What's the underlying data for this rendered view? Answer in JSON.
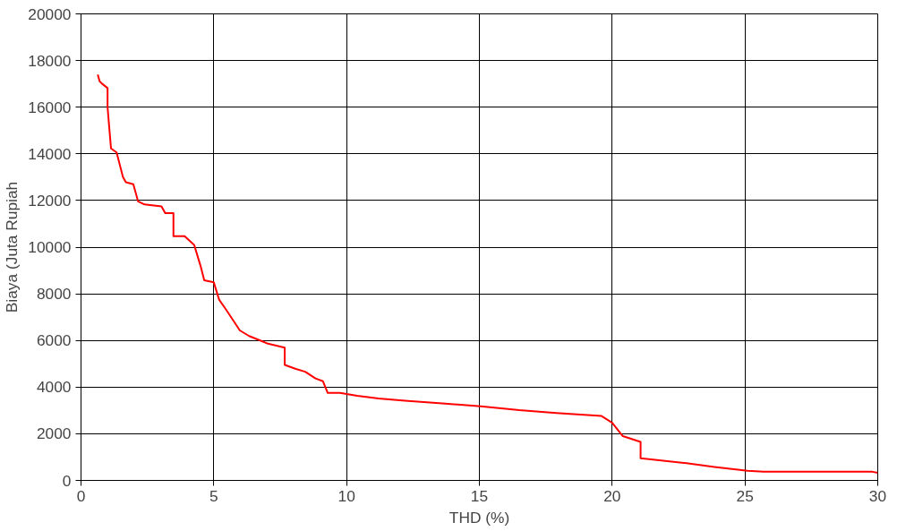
{
  "chart_data": {
    "type": "line",
    "xlabel": "THD (%)",
    "ylabel": "Biaya (Juta Rupiah",
    "xlim": [
      0,
      30
    ],
    "ylim": [
      0,
      20000
    ],
    "xticks": [
      0,
      5,
      10,
      15,
      20,
      25,
      30
    ],
    "yticks": [
      0,
      2000,
      4000,
      6000,
      8000,
      10000,
      12000,
      14000,
      16000,
      18000,
      20000
    ],
    "grid": true,
    "marker": "none",
    "line_style": "solid",
    "series": [
      {
        "color": "#ff0000",
        "x": [
          0.63,
          0.7,
          0.81,
          1.0,
          1.0,
          1.05,
          1.13,
          1.34,
          1.58,
          1.69,
          1.97,
          2.15,
          2.39,
          3.03,
          3.17,
          3.48,
          3.48,
          3.9,
          4.26,
          4.5,
          4.64,
          5.0,
          5.2,
          5.45,
          5.98,
          6.33,
          6.79,
          7.04,
          7.67,
          7.67,
          8.09,
          8.44,
          8.83,
          9.11,
          9.29,
          9.75,
          10.4,
          11.2,
          12.2,
          13.6,
          15.05,
          16.5,
          17.9,
          19.6,
          20.0,
          20.4,
          21.07,
          21.07,
          22.8,
          23.85,
          25.1,
          25.7,
          27.7,
          29.8,
          30
        ],
        "values": [
          17400,
          17110,
          16990,
          16820,
          16000,
          15300,
          14230,
          14060,
          13000,
          12780,
          12700,
          11960,
          11830,
          11750,
          11460,
          11460,
          10470,
          10470,
          10100,
          9200,
          8580,
          8490,
          7750,
          7340,
          6430,
          6190,
          5980,
          5860,
          5690,
          4950,
          4780,
          4660,
          4370,
          4250,
          3750,
          3750,
          3630,
          3510,
          3420,
          3300,
          3180,
          3010,
          2890,
          2760,
          2470,
          1900,
          1650,
          950,
          740,
          580,
          410,
          370,
          370,
          370,
          330
        ]
      }
    ]
  }
}
